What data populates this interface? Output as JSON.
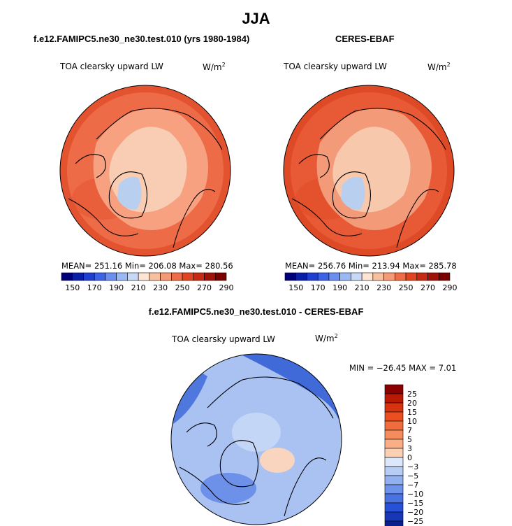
{
  "page": {
    "season": "JJA"
  },
  "panels": [
    {
      "title": "f.e12.FAMIPC5.ne30_ne30.test.010 (yrs 1980-1984)",
      "variable": "TOA clearsky upward LW",
      "units_base": "W/m",
      "units_exp": "2",
      "stats": "MEAN= 251.16   Min= 206.08   Max= 280.56",
      "field": {
        "base": "#ee6b47",
        "ring": "#e4532f",
        "core": "#f8cdb4",
        "icy": "#b8cff0",
        "mid": "#f7a181"
      }
    },
    {
      "title": "CERES-EBAF",
      "variable": "TOA clearsky upward LW",
      "units_base": "W/m",
      "units_exp": "2",
      "stats": "MEAN= 256.76   Min= 213.94   Max= 285.78",
      "field": {
        "base": "#e85a35",
        "ring": "#de4a25",
        "core": "#f8c8ad",
        "icy": "#b8cff0",
        "mid": "#f39a78"
      }
    }
  ],
  "diff_panel": {
    "title": "f.e12.FAMIPC5.ne30_ne30.test.010 - CERES-EBAF",
    "variable": "TOA clearsky upward LW",
    "units_base": "W/m",
    "units_exp": "2",
    "stats": "MIN = −26.45  MAX =    7.01"
  },
  "chart_data": [
    {
      "type": "heatmap",
      "projection": "north polar stereographic",
      "title": "f.e12.FAMIPC5.ne30_ne30.test.010 (yrs 1980-1984)",
      "subtitle": "TOA clearsky upward LW",
      "units": "W/m2",
      "mean": 251.16,
      "min": 206.08,
      "max": 280.56,
      "colorbar_levels": [
        150,
        170,
        190,
        210,
        230,
        250,
        270,
        290
      ],
      "colorbar_colors": [
        "#00007a",
        "#0a1fa8",
        "#1f3fd0",
        "#3c62e6",
        "#6a8ff0",
        "#9bb8f4",
        "#c8d9f7",
        "#fde4d4",
        "#f9c0a0",
        "#f59a74",
        "#ef6c47",
        "#e04522",
        "#c62a12",
        "#a01208",
        "#7a0000"
      ]
    },
    {
      "type": "heatmap",
      "projection": "north polar stereographic",
      "title": "CERES-EBAF",
      "subtitle": "TOA clearsky upward LW",
      "units": "W/m2",
      "mean": 256.76,
      "min": 213.94,
      "max": 285.78,
      "colorbar_levels": [
        150,
        170,
        190,
        210,
        230,
        250,
        270,
        290
      ],
      "colorbar_colors": [
        "#00007a",
        "#0a1fa8",
        "#1f3fd0",
        "#3c62e6",
        "#6a8ff0",
        "#9bb8f4",
        "#c8d9f7",
        "#fde4d4",
        "#f9c0a0",
        "#f59a74",
        "#ef6c47",
        "#e04522",
        "#c62a12",
        "#a01208",
        "#7a0000"
      ]
    },
    {
      "type": "heatmap",
      "projection": "north polar stereographic",
      "title": "f.e12.FAMIPC5.ne30_ne30.test.010 - CERES-EBAF",
      "subtitle": "TOA clearsky upward LW",
      "units": "W/m2",
      "min": -26.45,
      "max": 7.01,
      "colorbar_levels": [
        "25",
        "20",
        "15",
        "10",
        "7",
        "5",
        "3",
        "0",
        "−3",
        "−5",
        "−7",
        "−10",
        "−15",
        "−20",
        "−25"
      ],
      "colorbar_colors": [
        "#8b0000",
        "#b81a06",
        "#d8330f",
        "#ea4f22",
        "#f16c3c",
        "#f58c5e",
        "#f9ae85",
        "#fbd0b4",
        "#dbe7fb",
        "#b7cdf6",
        "#93b1f1",
        "#6e93ea",
        "#4a73e2",
        "#2852d6",
        "#1637b8",
        "#0a1f8e"
      ]
    }
  ]
}
